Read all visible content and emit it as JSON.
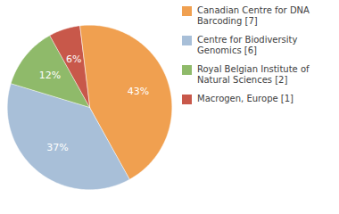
{
  "chart_data": {
    "type": "pie",
    "categories": [
      "Canadian Centre for DNA\nBarcoding [7]",
      "Centre for Biodiversity\nGenomics [6]",
      "Royal Belgian Institute of\nNatural Sciences [2]",
      "Macrogen, Europe [1]"
    ],
    "values": [
      43,
      37,
      12,
      6
    ],
    "value_labels": [
      "43%",
      "37%",
      "12%",
      "6%"
    ],
    "colors": [
      "#f0a050",
      "#a8bfd8",
      "#8fba6a",
      "#c8584a"
    ],
    "data_labels": true,
    "legend": "right"
  }
}
